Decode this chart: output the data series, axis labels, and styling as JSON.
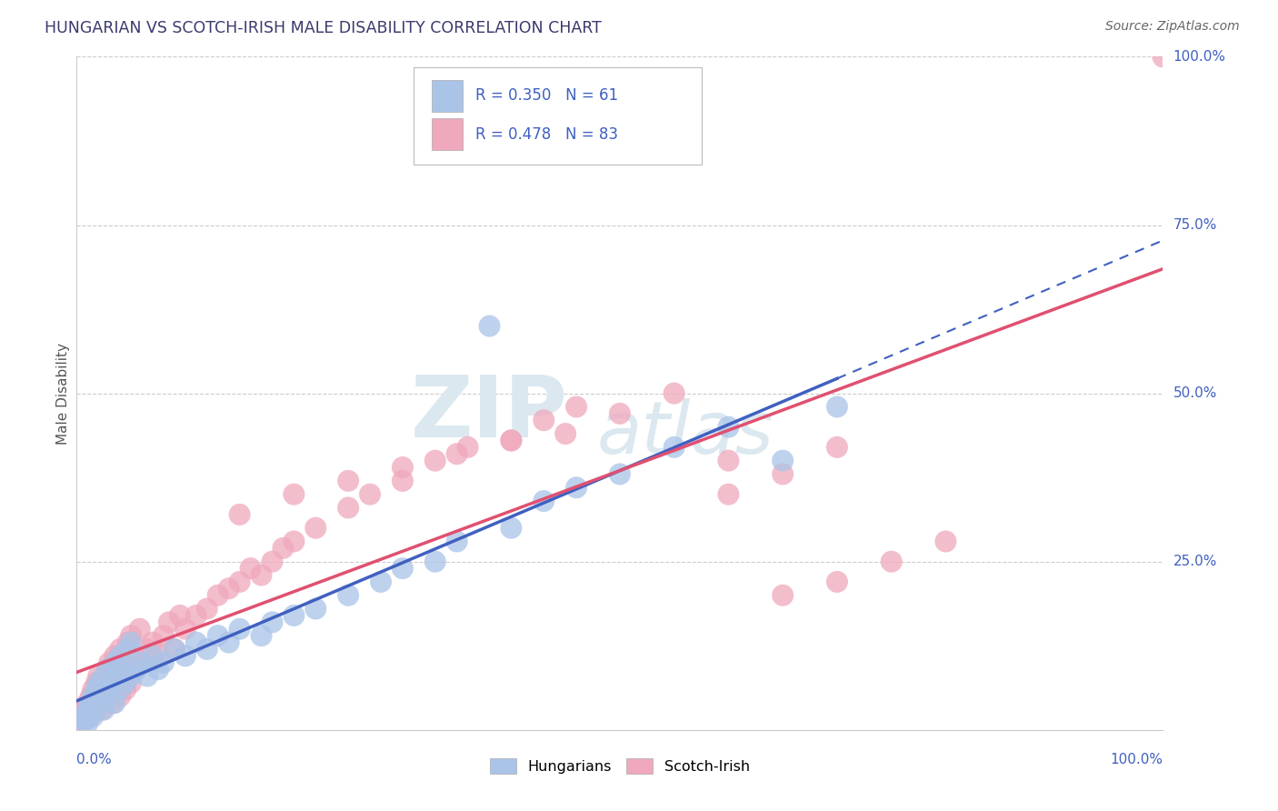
{
  "title": "HUNGARIAN VS SCOTCH-IRISH MALE DISABILITY CORRELATION CHART",
  "source": "Source: ZipAtlas.com",
  "ylabel": "Male Disability",
  "title_color": "#3a3a6e",
  "source_color": "#666666",
  "background_color": "#ffffff",
  "hungarian_color": "#aac4e8",
  "scotch_color": "#f0a8bc",
  "hungarian_line_color": "#4060c0",
  "scotch_line_color": "#e05070",
  "R_hungarian": 0.35,
  "N_hungarian": 61,
  "R_scotch": 0.478,
  "N_scotch": 83,
  "xlim": [
    0.0,
    1.0
  ],
  "ylim": [
    0.0,
    1.0
  ],
  "watermark_text": "ZIPatlas",
  "watermark_color": "#dce8f0",
  "legend_text_color": "#4060c0",
  "axis_label_color": "#4060c0",
  "grid_color": "#cccccc",
  "hu_x": [
    0.005,
    0.007,
    0.008,
    0.01,
    0.01,
    0.012,
    0.013,
    0.015,
    0.015,
    0.017,
    0.018,
    0.02,
    0.02,
    0.022,
    0.025,
    0.025,
    0.027,
    0.03,
    0.03,
    0.032,
    0.035,
    0.035,
    0.038,
    0.04,
    0.04,
    0.042,
    0.045,
    0.047,
    0.05,
    0.05,
    0.055,
    0.06,
    0.065,
    0.07,
    0.075,
    0.08,
    0.09,
    0.1,
    0.11,
    0.12,
    0.13,
    0.14,
    0.15,
    0.17,
    0.18,
    0.2,
    0.22,
    0.25,
    0.28,
    0.3,
    0.33,
    0.35,
    0.4,
    0.43,
    0.46,
    0.5,
    0.55,
    0.6,
    0.65,
    0.7,
    0.38
  ],
  "hu_y": [
    0.01,
    0.02,
    0.015,
    0.03,
    0.01,
    0.025,
    0.04,
    0.02,
    0.05,
    0.03,
    0.06,
    0.04,
    0.07,
    0.05,
    0.03,
    0.08,
    0.06,
    0.05,
    0.09,
    0.07,
    0.04,
    0.1,
    0.08,
    0.06,
    0.11,
    0.09,
    0.07,
    0.12,
    0.08,
    0.13,
    0.09,
    0.1,
    0.08,
    0.11,
    0.09,
    0.1,
    0.12,
    0.11,
    0.13,
    0.12,
    0.14,
    0.13,
    0.15,
    0.14,
    0.16,
    0.17,
    0.18,
    0.2,
    0.22,
    0.24,
    0.25,
    0.28,
    0.3,
    0.34,
    0.36,
    0.38,
    0.42,
    0.45,
    0.4,
    0.48,
    0.6
  ],
  "si_x": [
    0.003,
    0.005,
    0.007,
    0.008,
    0.01,
    0.01,
    0.012,
    0.013,
    0.015,
    0.015,
    0.017,
    0.018,
    0.02,
    0.02,
    0.022,
    0.023,
    0.025,
    0.027,
    0.028,
    0.03,
    0.03,
    0.032,
    0.033,
    0.035,
    0.037,
    0.038,
    0.04,
    0.04,
    0.042,
    0.043,
    0.045,
    0.047,
    0.05,
    0.05,
    0.053,
    0.055,
    0.058,
    0.06,
    0.065,
    0.07,
    0.075,
    0.08,
    0.085,
    0.09,
    0.095,
    0.1,
    0.11,
    0.12,
    0.13,
    0.14,
    0.15,
    0.16,
    0.17,
    0.18,
    0.19,
    0.2,
    0.22,
    0.25,
    0.27,
    0.3,
    0.33,
    0.36,
    0.4,
    0.43,
    0.46,
    0.5,
    0.55,
    0.6,
    0.65,
    0.7,
    0.75,
    0.8,
    0.6,
    0.65,
    0.7,
    0.15,
    0.2,
    0.25,
    0.3,
    0.35,
    0.4,
    0.45,
    1.0
  ],
  "si_y": [
    0.01,
    0.02,
    0.015,
    0.03,
    0.02,
    0.04,
    0.03,
    0.05,
    0.025,
    0.06,
    0.04,
    0.07,
    0.05,
    0.08,
    0.06,
    0.03,
    0.07,
    0.05,
    0.09,
    0.06,
    0.1,
    0.08,
    0.04,
    0.11,
    0.09,
    0.07,
    0.05,
    0.12,
    0.1,
    0.08,
    0.06,
    0.13,
    0.07,
    0.14,
    0.11,
    0.09,
    0.15,
    0.1,
    0.12,
    0.13,
    0.11,
    0.14,
    0.16,
    0.12,
    0.17,
    0.15,
    0.17,
    0.18,
    0.2,
    0.21,
    0.22,
    0.24,
    0.23,
    0.25,
    0.27,
    0.28,
    0.3,
    0.33,
    0.35,
    0.37,
    0.4,
    0.42,
    0.43,
    0.46,
    0.48,
    0.47,
    0.5,
    0.4,
    0.2,
    0.22,
    0.25,
    0.28,
    0.35,
    0.38,
    0.42,
    0.32,
    0.35,
    0.37,
    0.39,
    0.41,
    0.43,
    0.44,
    1.0
  ]
}
